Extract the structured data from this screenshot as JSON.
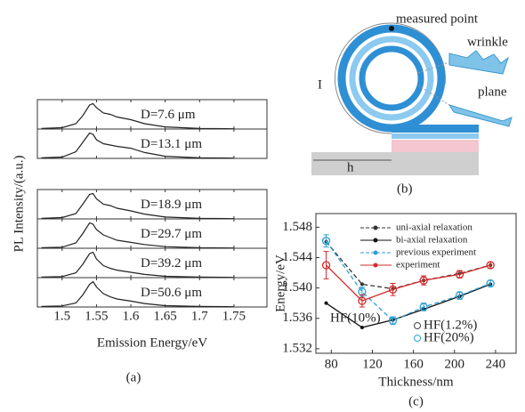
{
  "chart_data": [
    {
      "type": "spectra",
      "caption": "(a)",
      "xlabel": "Emission Energy/eV",
      "ylabel": "PL Intensity/(a.u.)",
      "x": [
        1.47,
        1.5,
        1.52,
        1.53,
        1.54,
        1.545,
        1.55,
        1.56,
        1.57,
        1.58,
        1.6,
        1.62,
        1.65,
        1.7,
        1.75
      ],
      "series": [
        {
          "name": "D=7.6 μm",
          "color": "#222",
          "values": [
            0.02,
            0.05,
            0.2,
            0.5,
            0.9,
            0.95,
            0.8,
            0.6,
            0.55,
            0.45,
            0.35,
            0.2,
            0.08,
            0.02,
            0.01
          ]
        },
        {
          "name": "D=13.1 μm",
          "color": "#222",
          "values": [
            0.02,
            0.05,
            0.25,
            0.6,
            0.95,
            0.9,
            0.7,
            0.55,
            0.5,
            0.45,
            0.38,
            0.22,
            0.08,
            0.02,
            0.01
          ]
        },
        {
          "name": "D=18.9 μm",
          "color": "#222",
          "values": [
            0.02,
            0.05,
            0.2,
            0.55,
            0.92,
            0.95,
            0.75,
            0.55,
            0.5,
            0.4,
            0.3,
            0.18,
            0.07,
            0.02,
            0.01
          ]
        },
        {
          "name": "D=29.7 μm",
          "color": "#222",
          "values": [
            0.02,
            0.04,
            0.2,
            0.55,
            0.95,
            0.9,
            0.7,
            0.5,
            0.4,
            0.3,
            0.22,
            0.14,
            0.06,
            0.02,
            0.01
          ]
        },
        {
          "name": "D=39.2 μm",
          "color": "#222",
          "values": [
            0.02,
            0.04,
            0.18,
            0.5,
            0.9,
            0.95,
            0.7,
            0.45,
            0.35,
            0.28,
            0.2,
            0.12,
            0.05,
            0.02,
            0.01
          ]
        },
        {
          "name": "D=50.6 μm",
          "color": "#222",
          "values": [
            0.02,
            0.04,
            0.15,
            0.45,
            0.85,
            0.95,
            0.75,
            0.5,
            0.38,
            0.3,
            0.22,
            0.13,
            0.05,
            0.02,
            0.01
          ]
        }
      ],
      "xlim": [
        1.464,
        1.798
      ],
      "xticks": [
        1.5,
        1.55,
        1.6,
        1.65,
        1.7,
        1.75
      ],
      "ylim": [
        0,
        1.1
      ]
    },
    {
      "type": "line",
      "caption": "(c)",
      "xlabel": "Thickness/nm",
      "ylabel": "Energy/eV",
      "x": [
        75,
        110,
        140,
        170,
        205,
        235
      ],
      "series": [
        {
          "name": "uni-axial relaxation",
          "color": "#333",
          "dashed": true,
          "marker": "dot",
          "values": [
            1.5461,
            1.5405,
            1.5399,
            1.541,
            1.5419,
            1.543
          ]
        },
        {
          "name": "bi-axial relaxation",
          "color": "#111",
          "dashed": false,
          "marker": "dot",
          "values": [
            1.538,
            1.5348,
            1.5358,
            1.5372,
            1.5389,
            1.5405
          ]
        },
        {
          "name": "previous experiment",
          "color": "#2a9fd6",
          "dashed": true,
          "marker": "circle",
          "values": [
            1.5462,
            1.5395,
            1.5357,
            1.5375,
            1.539,
            1.5406
          ],
          "errors": [
            0.0008,
            0.0006,
            0.0005,
            0.0005,
            0.0005,
            0.0004
          ]
        },
        {
          "name": "experiment",
          "color": "#d42a2a",
          "dashed": false,
          "marker": "circle",
          "values": [
            1.543,
            1.5383,
            1.5398,
            1.541,
            1.5418,
            1.543
          ],
          "errors": [
            0.0018,
            0.0008,
            0.0008,
            0.0006,
            0.0005,
            0.0004
          ]
        }
      ],
      "annotations": [
        "HF(10%)",
        "HF(1.2%)",
        "HF(20%)"
      ],
      "xlim": [
        65,
        260
      ],
      "xticks": [
        80,
        120,
        160,
        200,
        240
      ],
      "ylim": [
        1.5314,
        1.5498
      ],
      "yticks": [
        1.532,
        1.536,
        {
          "value": 1.54,
          "label": "1.540"
        },
        1.544,
        1.548
      ]
    }
  ],
  "diagram": {
    "caption": "(b)",
    "labels": {
      "measured_point": "measured point",
      "wrinkle": "wrinkle",
      "plane": "plane",
      "radius": "I",
      "height": "h"
    }
  }
}
